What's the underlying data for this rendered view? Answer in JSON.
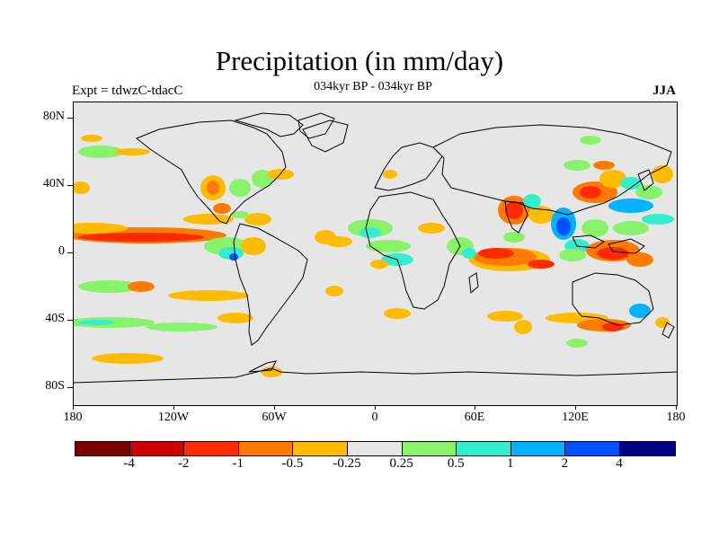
{
  "title": "Precipitation (in mm/day)",
  "expt": "Expt = tdwzC-tdacC",
  "subtitle": "034kyr BP - 034kyr BP",
  "season": "JJA",
  "y_axis_labels": [
    "80N",
    "40N",
    "0",
    "40S",
    "80S"
  ],
  "x_axis_labels": [
    "180",
    "120W",
    "60W",
    "0",
    "60E",
    "120E",
    "180"
  ],
  "colorbar": {
    "colors": [
      "#7a0000",
      "#cc0000",
      "#ff2a00",
      "#ff7b00",
      "#ffbb00",
      "#e6e6e6",
      "#88f26a",
      "#33eecc",
      "#00b2ff",
      "#0052ff",
      "#000080"
    ],
    "labels": [
      "-4",
      "-2",
      "-1",
      "-0.5",
      "-0.25",
      "0.25",
      "0.5",
      "1",
      "2",
      "4"
    ]
  },
  "colors": {
    "background": "#e6e6e6",
    "coastline": "#000000"
  }
}
